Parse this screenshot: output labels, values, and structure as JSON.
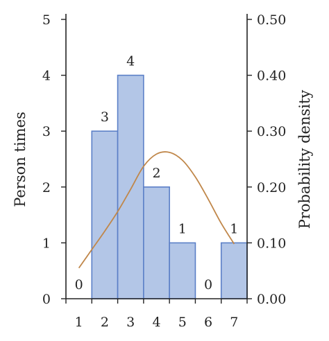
{
  "chart_data": {
    "type": "bar",
    "categories": [
      "1",
      "2",
      "3",
      "4",
      "5",
      "6",
      "7"
    ],
    "values": [
      0,
      3,
      4,
      2,
      1,
      0,
      1
    ],
    "data_labels": [
      "0",
      "3",
      "4",
      "2",
      "1",
      "0",
      "1"
    ],
    "ylabel": "Person times",
    "y2label": "Probability density",
    "ylim": [
      0,
      5
    ],
    "y2lim": [
      0,
      0.5
    ],
    "y_ticks": [
      "0",
      "1",
      "2",
      "3",
      "4",
      "5"
    ],
    "y2_ticks": [
      "0.00",
      "0.10",
      "0.20",
      "0.30",
      "0.40",
      "0.50"
    ],
    "density_curve": {
      "x": [
        1.0,
        1.5,
        2.0,
        2.5,
        3.0,
        3.5,
        4.0,
        4.5,
        5.0,
        5.5,
        6.0,
        6.5,
        7.0
      ],
      "y": [
        0.055,
        0.088,
        0.121,
        0.156,
        0.196,
        0.237,
        0.259,
        0.262,
        0.248,
        0.218,
        0.178,
        0.135,
        0.098
      ]
    },
    "grid": false,
    "colors": {
      "bar_fill": "#b3c6e7",
      "bar_stroke": "#5b7fc7",
      "curve": "#c0874a",
      "axis": "#222222"
    }
  }
}
